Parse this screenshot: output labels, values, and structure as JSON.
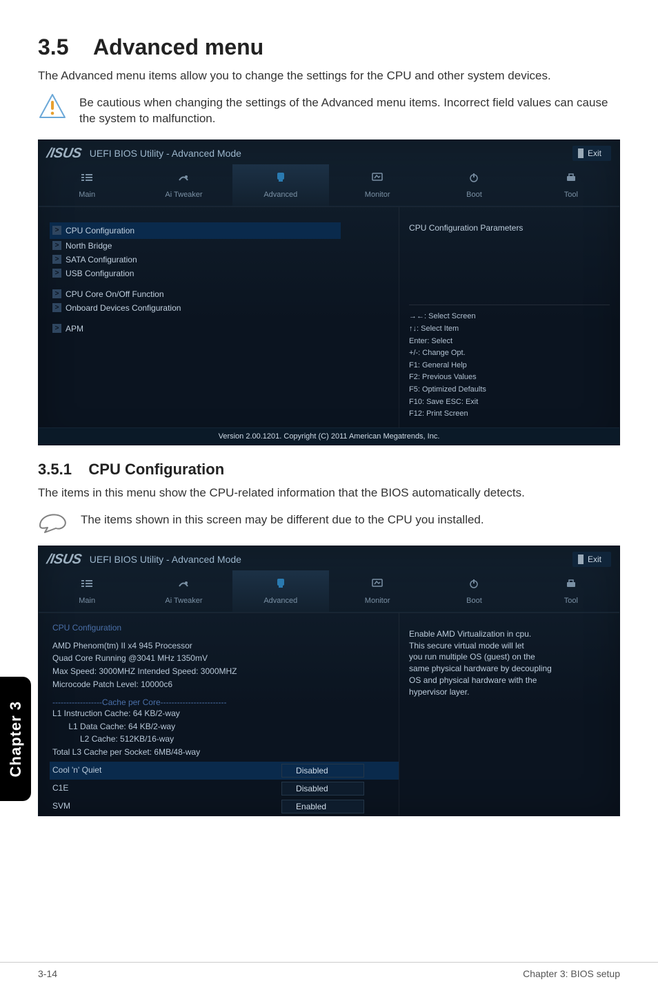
{
  "section": {
    "number": "3.5",
    "title": "Advanced menu"
  },
  "intro": "The Advanced menu items allow you to change the settings for the CPU and other system devices.",
  "caution_text": "Be cautious when changing the settings of the Advanced menu items. Incorrect field values can cause the system to malfunction.",
  "subsection": {
    "number": "3.5.1",
    "title": "CPU Configuration"
  },
  "subsection_intro": "The items in this menu show the CPU-related information that the BIOS automatically detects.",
  "note_text": "The items shown in this screen may be different due to the CPU you installed.",
  "bios_shared": {
    "brand": "/ISUS",
    "title": "UEFI BIOS Utility - Advanced Mode",
    "exit": "Exit",
    "tabs": [
      "Main",
      "Ai Tweaker",
      "Advanced",
      "Monitor",
      "Boot",
      "Tool"
    ],
    "active_tab_index": 2,
    "footer_version": "Version 2.00.1201.  Copyright (C) 2011 American Megatrends, Inc."
  },
  "bios1": {
    "menu_items": [
      "CPU Configuration",
      "North Bridge",
      "SATA Configuration",
      "USB Configuration",
      "",
      "CPU Core On/Off Function",
      "Onboard Devices Configuration",
      "",
      "APM"
    ],
    "selected_index": 0,
    "help_title": "CPU Configuration Parameters",
    "nav_lines": [
      "→←:  Select Screen",
      "↑↓:  Select Item",
      "Enter:  Select",
      "+/-:  Change Opt.",
      "F1:  General Help",
      "F2:  Previous Values",
      "F5:  Optimized Defaults",
      "F10:  Save   ESC:  Exit",
      "F12:  Print Screen"
    ]
  },
  "bios2": {
    "cfg_heading": "CPU Configuration",
    "cfg_lines": [
      "AMD Phenom(tm) II x4 945 Processor",
      "Quad Core Running @3041 MHz  1350mV",
      "Max Speed: 3000MHZ           Intended Speed: 3000MHZ",
      "Microcode Patch Level: 10000c6"
    ],
    "cache_heading": "------------------Cache per Core------------------------",
    "cache_lines": [
      "L1 Instruction Cache: 64 KB/2-way",
      "       L1 Data Cache: 64 KB/2-way",
      "            L2 Cache: 512KB/16-way",
      "Total L3 Cache per Socket: 6MB/48-way"
    ],
    "settings": [
      {
        "label": "Cool 'n' Quiet",
        "value": "Disabled",
        "selected": true
      },
      {
        "label": "C1E",
        "value": "Disabled",
        "selected": false
      },
      {
        "label": "SVM",
        "value": "Enabled",
        "selected": false
      }
    ],
    "help_lines": [
      "Enable AMD Virtualization in cpu.",
      "This secure virtual mode will let",
      "you run multiple OS (guest) on the",
      "same physical hardware by decoupling",
      "OS and physical hardware with the",
      "hypervisor layer."
    ]
  },
  "page_footer": {
    "left": "3-14",
    "right": "Chapter 3: BIOS setup"
  },
  "chapter_tab": "Chapter 3",
  "colors": {
    "bios_bg_top": "#12202e",
    "bios_bg_bottom": "#0b1420",
    "bios_selected": "#0a2a4c",
    "cfg_label": "#4a6fa8",
    "chapter_bg": "#000000"
  }
}
